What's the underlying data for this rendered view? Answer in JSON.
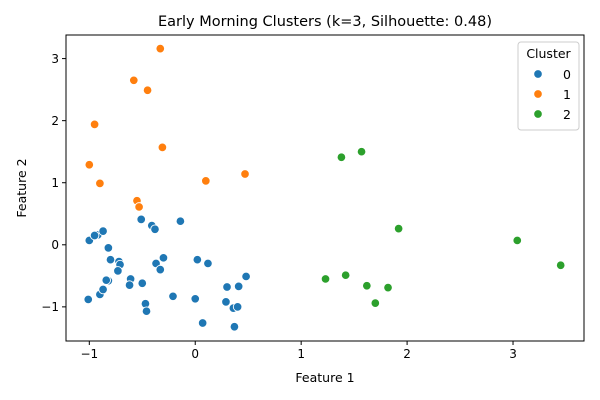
{
  "chart_data": {
    "type": "scatter",
    "title": "Early Morning Clusters (k=3, Silhouette: 0.48)",
    "xlabel": "Feature 1",
    "ylabel": "Feature 2",
    "xlim": [
      -1.22,
      3.67
    ],
    "ylim": [
      -1.55,
      3.38
    ],
    "xticks": [
      -1,
      0,
      1,
      2,
      3
    ],
    "yticks": [
      -1,
      0,
      1,
      2,
      3
    ],
    "grid": false,
    "legend": {
      "title": "Cluster",
      "placement": "top-right"
    },
    "series": [
      {
        "name": "0",
        "color": "#1f77b4",
        "x": [
          -1.0,
          -0.92,
          -0.87,
          -0.82,
          -0.95,
          -0.72,
          -0.71,
          -0.73,
          -0.8,
          -0.9,
          -0.87,
          -0.82,
          -0.84,
          -1.01,
          -0.61,
          -0.62,
          -0.51,
          -0.5,
          -0.47,
          -0.46,
          -0.41,
          -0.38,
          -0.37,
          -0.33,
          -0.3,
          -0.21,
          -0.14,
          0.0,
          0.02,
          0.07,
          0.12,
          0.3,
          0.29,
          0.36,
          0.37,
          0.4,
          0.41,
          0.48
        ],
        "y": [
          0.07,
          0.16,
          0.22,
          -0.05,
          0.15,
          -0.27,
          -0.32,
          -0.42,
          -0.24,
          -0.8,
          -0.72,
          -0.58,
          -0.57,
          -0.88,
          -0.55,
          -0.65,
          0.41,
          -0.62,
          -0.95,
          -1.07,
          0.31,
          0.25,
          -0.3,
          -0.4,
          -0.21,
          -0.83,
          0.38,
          -0.87,
          -0.24,
          -1.26,
          -0.3,
          -0.68,
          -0.92,
          -1.02,
          -1.32,
          -1.0,
          -0.67,
          -0.51
        ]
      },
      {
        "name": "1",
        "color": "#ff7f0e",
        "x": [
          -0.33,
          -0.58,
          -0.45,
          -0.95,
          -1.0,
          -0.9,
          -0.31,
          0.1,
          0.47,
          -0.55,
          -0.53
        ],
        "y": [
          3.16,
          2.65,
          2.49,
          1.94,
          1.29,
          0.99,
          1.57,
          1.03,
          1.14,
          0.71,
          0.61
        ]
      },
      {
        "name": "2",
        "color": "#2ca02c",
        "x": [
          1.38,
          1.57,
          1.92,
          3.04,
          3.45,
          1.23,
          1.42,
          1.62,
          1.82,
          1.7
        ],
        "y": [
          1.41,
          1.5,
          0.26,
          0.07,
          -0.33,
          -0.55,
          -0.49,
          -0.66,
          -0.69,
          -0.94
        ]
      }
    ]
  }
}
